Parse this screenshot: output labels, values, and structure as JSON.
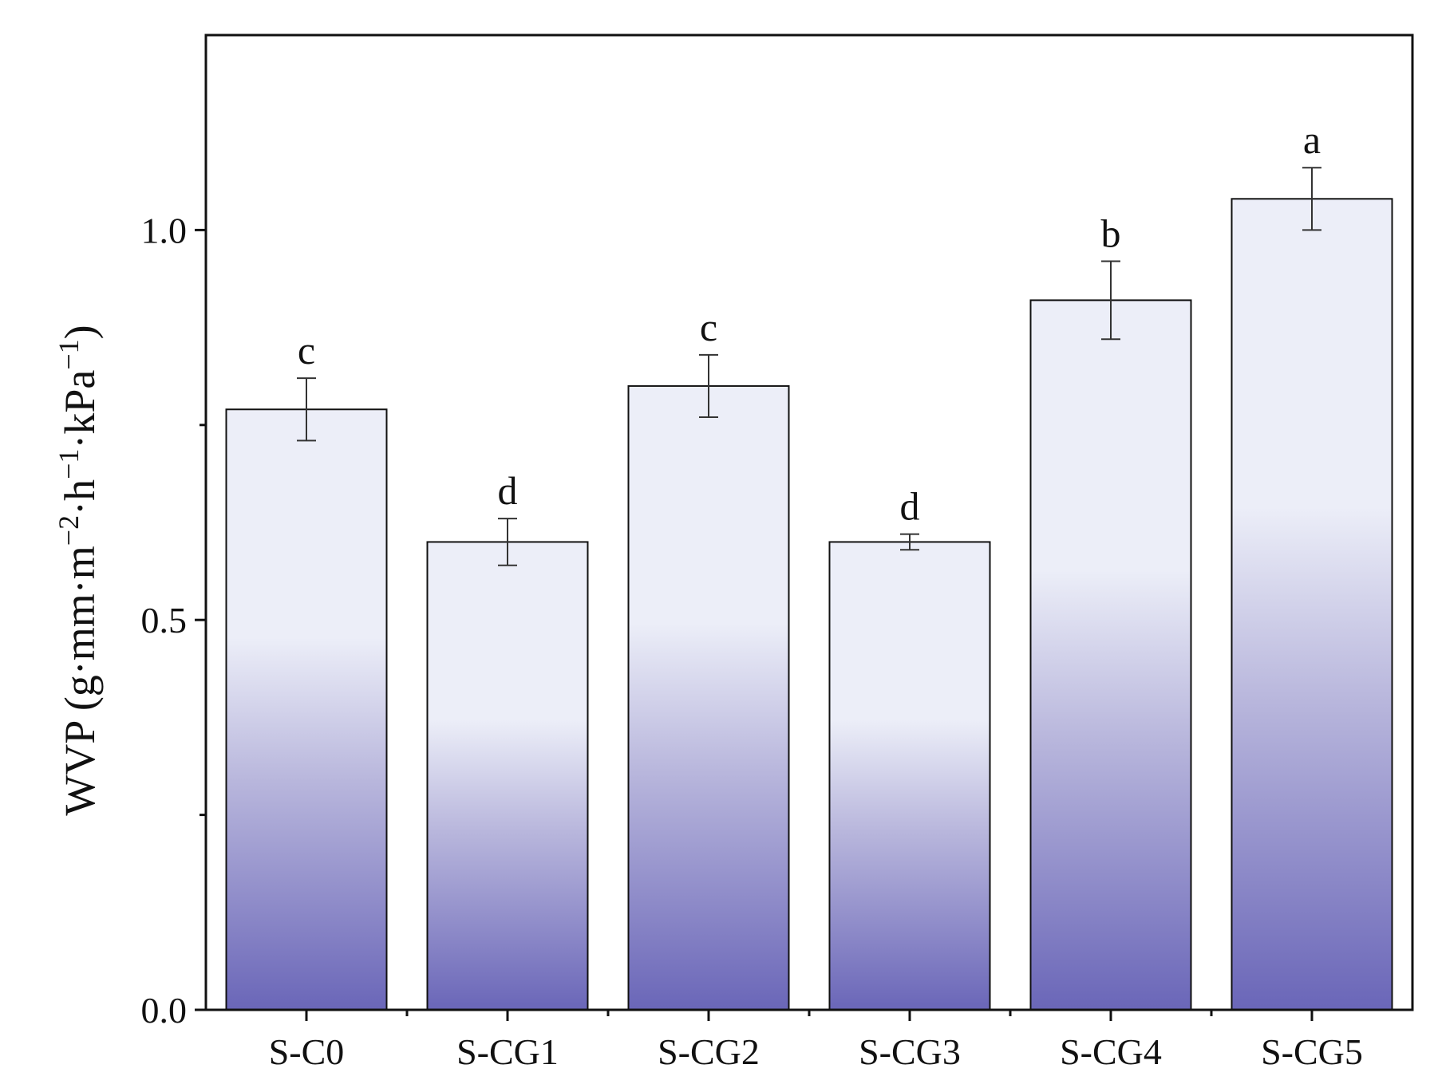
{
  "chart_data": {
    "type": "bar",
    "title": "",
    "xlabel": "",
    "ylabel": {
      "parts": [
        {
          "text": "WVP (g·mm·m",
          "sup": false
        },
        {
          "text": "−2",
          "sup": true
        },
        {
          "text": "·h",
          "sup": false
        },
        {
          "text": "−1",
          "sup": true
        },
        {
          "text": "·kPa",
          "sup": false
        },
        {
          "text": "−1",
          "sup": true
        },
        {
          "text": ")",
          "sup": false
        }
      ]
    },
    "categories": [
      "S-C0",
      "S-CG1",
      "S-CG2",
      "S-CG3",
      "S-CG4",
      "S-CG5"
    ],
    "values": [
      0.77,
      0.6,
      0.8,
      0.6,
      0.91,
      1.04
    ],
    "errors": [
      0.04,
      0.03,
      0.04,
      0.01,
      0.05,
      0.04
    ],
    "significance": [
      "c",
      "d",
      "c",
      "d",
      "b",
      "a"
    ],
    "ylim": [
      0.0,
      1.25
    ],
    "y_ticks_major": [
      0.0,
      0.5,
      1.0
    ],
    "y_tick_labels": [
      "0.0",
      "0.5",
      "1.0"
    ],
    "y_ticks_minor": [
      0.25,
      0.75
    ],
    "grid": false,
    "legend": "none",
    "colors": {
      "bar_gradient_top": "#eceef8",
      "bar_gradient_mid": "#b8b6dc",
      "bar_gradient_bottom": "#6a66b8",
      "bar_edge": "#111111",
      "axis": "#111111"
    }
  }
}
